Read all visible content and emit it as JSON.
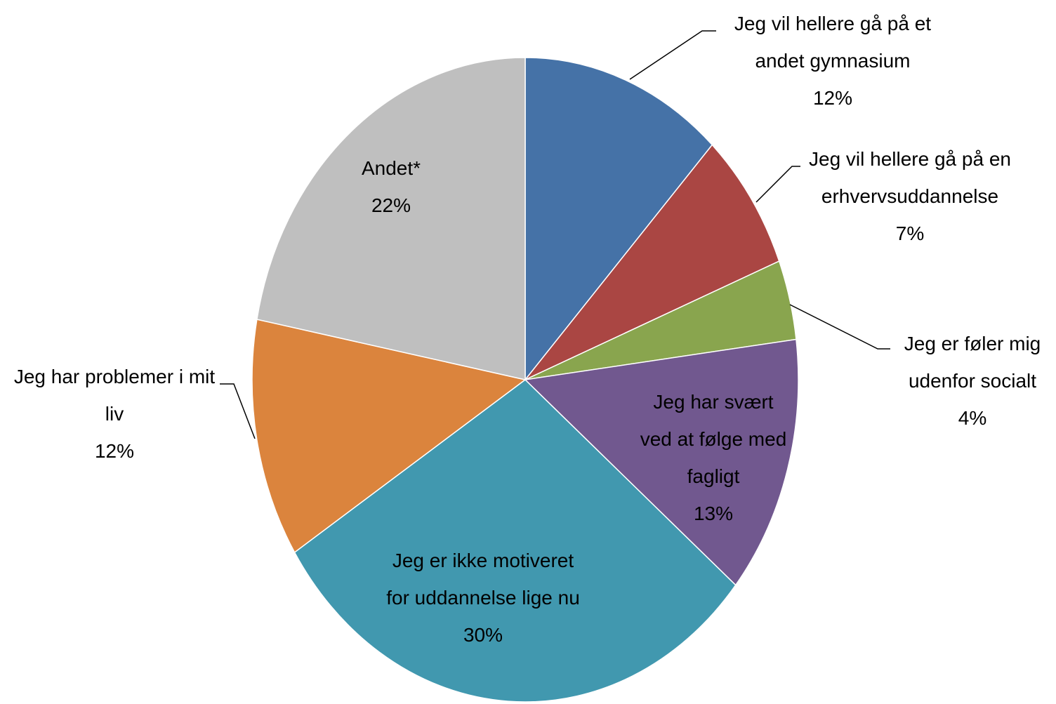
{
  "chart_data": {
    "type": "pie",
    "categories": [
      "Jeg vil hellere gå på et andet gymnasium",
      "Jeg vil hellere gå på en erhvervsuddannelse",
      "Jeg er føler mig udenfor socialt",
      "Jeg har svært ved at følge med fagligt",
      "Jeg er ikke motiveret for uddannelse lige nu",
      "Jeg har problemer i mit liv",
      "Andet*"
    ],
    "values": [
      12,
      7,
      4,
      13,
      30,
      12,
      22
    ],
    "value_labels": [
      "12%",
      "7%",
      "4%",
      "13%",
      "30%",
      "12%",
      "22%"
    ],
    "colors": [
      "#4572a7",
      "#aa4643",
      "#89a54e",
      "#71588f",
      "#4198af",
      "#db843d",
      "#bfbfbf"
    ]
  }
}
